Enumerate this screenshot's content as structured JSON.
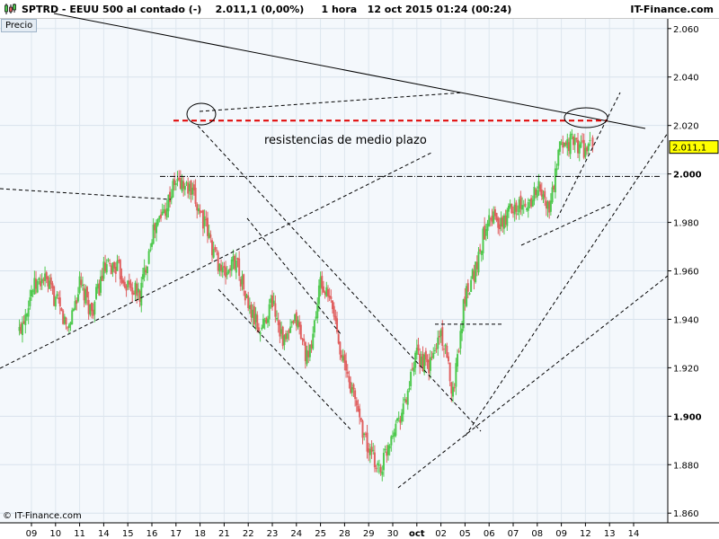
{
  "header": {
    "title": "SPTRD - EEUU 500 al contado (-)    2.011,1 (0,00%)     1 hora   12 oct 2015 01:24 (00:24)",
    "brand": "IT-Finance.com"
  },
  "legend_label": "Precio",
  "copyright": "© IT-Finance.com",
  "colors": {
    "up": "#4ec94e",
    "down": "#e06060",
    "resistance": "#e00000",
    "price_box": "#ffff00"
  },
  "chart_data": {
    "type": "candlestick",
    "title": "SPTRD - EEUU 500 al contado (-)",
    "timeframe": "1 hora",
    "last_price": "2.011,1",
    "last_price_value": 2011.1,
    "change": "0,00%",
    "ylim": [
      1856,
      2064
    ],
    "y_ticks": [
      {
        "value": 1860,
        "label": "1.860",
        "bold": false
      },
      {
        "value": 1880,
        "label": "1.880",
        "bold": false
      },
      {
        "value": 1900,
        "label": "1.900",
        "bold": true
      },
      {
        "value": 1920,
        "label": "1.920",
        "bold": false
      },
      {
        "value": 1940,
        "label": "1.940",
        "bold": false
      },
      {
        "value": 1960,
        "label": "1.960",
        "bold": false
      },
      {
        "value": 1980,
        "label": "1.980",
        "bold": false
      },
      {
        "value": 2000,
        "label": "2.000",
        "bold": true
      },
      {
        "value": 2020,
        "label": "2.020",
        "bold": false
      },
      {
        "value": 2040,
        "label": "2.040",
        "bold": false
      },
      {
        "value": 2060,
        "label": "2.060",
        "bold": false
      }
    ],
    "x_labels": [
      "09",
      "10",
      "11",
      "14",
      "15",
      "16",
      "17",
      "18",
      "21",
      "22",
      "23",
      "24",
      "25",
      "28",
      "29",
      "30",
      "oct",
      "02",
      "05",
      "06",
      "07",
      "08",
      "09",
      "12",
      "13",
      "14"
    ],
    "x_label_bold": "oct",
    "series": [
      {
        "session": "09",
        "values": [
          1935,
          1952,
          1957
        ]
      },
      {
        "session": "10",
        "values": [
          1957,
          1948,
          1936
        ]
      },
      {
        "session": "11",
        "values": [
          1936,
          1954,
          1943
        ]
      },
      {
        "session": "14",
        "values": [
          1943,
          1960,
          1962
        ]
      },
      {
        "session": "15",
        "values": [
          1962,
          1954,
          1950
        ]
      },
      {
        "session": "16",
        "values": [
          1950,
          1975,
          1985
        ]
      },
      {
        "session": "17",
        "values": [
          1985,
          1997,
          1994
        ]
      },
      {
        "session": "18",
        "values": [
          1994,
          1985,
          1970
        ]
      },
      {
        "session": "21",
        "values": [
          1970,
          1958,
          1965
        ]
      },
      {
        "session": "22",
        "values": [
          1965,
          1945,
          1935
        ]
      },
      {
        "session": "23",
        "values": [
          1935,
          1948,
          1930
        ]
      },
      {
        "session": "24",
        "values": [
          1930,
          1940,
          1922
        ]
      },
      {
        "session": "25",
        "values": [
          1922,
          1955,
          1945
        ]
      },
      {
        "session": "28",
        "values": [
          1945,
          1920,
          1905
        ]
      },
      {
        "session": "29",
        "values": [
          1905,
          1885,
          1878
        ]
      },
      {
        "session": "30",
        "values": [
          1878,
          1895,
          1905
        ]
      },
      {
        "session": "oct",
        "values": [
          1905,
          1925,
          1920
        ]
      },
      {
        "session": "02",
        "values": [
          1920,
          1935,
          1910
        ]
      },
      {
        "session": "05",
        "values": [
          1910,
          1950,
          1963
        ]
      },
      {
        "session": "06",
        "values": [
          1963,
          1985,
          1978
        ]
      },
      {
        "session": "07",
        "values": [
          1978,
          1988,
          1985
        ]
      },
      {
        "session": "08",
        "values": [
          1985,
          1995,
          1985
        ]
      },
      {
        "session": "09",
        "values": [
          1985,
          2013,
          2013
        ]
      },
      {
        "session": "12",
        "values": [
          2013,
          2010,
          2011.1
        ]
      }
    ],
    "annotations": [
      {
        "type": "text",
        "text": "resistencias de medio plazo"
      },
      {
        "type": "hline",
        "value": 2022,
        "style": "red-dashed",
        "label": "resistencia"
      },
      {
        "type": "hline",
        "value": 1999,
        "style": "black-dash-dot"
      },
      {
        "type": "hline",
        "value": 1938,
        "style": "black-dashed"
      },
      {
        "type": "trendline",
        "style": "black-solid",
        "description": "long-term falling resistance"
      },
      {
        "type": "channel",
        "style": "black-dashed",
        "description": "falling channel"
      },
      {
        "type": "channel",
        "style": "black-dashed",
        "description": "rising channel"
      },
      {
        "type": "ellipse",
        "description": "peak 18 sep"
      },
      {
        "type": "ellipse",
        "description": "peak 09 oct"
      }
    ]
  }
}
